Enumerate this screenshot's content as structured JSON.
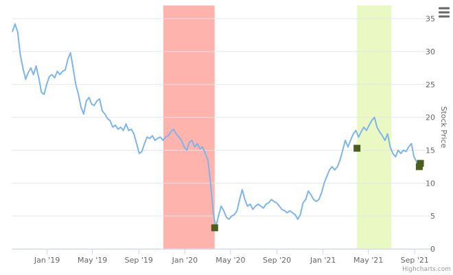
{
  "colors": {
    "line": "#7cb5ec",
    "grid": "#e6e6e6",
    "axis": "#ccd6eb",
    "band_red": "#ffb3ad",
    "band_green": "#eaf9c3",
    "marker": "#4b5e1e",
    "menu_icon": "#666666"
  },
  "icons": {
    "menu": "hamburger-menu-icon"
  },
  "credits": "Highcharts.com",
  "chart_data": {
    "type": "line",
    "title": "",
    "xlabel": "",
    "ylabel": "Stock Price",
    "x_range": [
      "2018-10-01",
      "2021-09-15"
    ],
    "ylim": [
      0,
      37
    ],
    "y_ticks": [
      0,
      5,
      10,
      15,
      20,
      25,
      30,
      35
    ],
    "x_ticks": [
      {
        "date": "2019-01-01",
        "label": "Jan '19"
      },
      {
        "date": "2019-05-01",
        "label": "May '19"
      },
      {
        "date": "2019-09-01",
        "label": "Sep '19"
      },
      {
        "date": "2020-01-01",
        "label": "Jan '20"
      },
      {
        "date": "2020-05-01",
        "label": "May '20"
      },
      {
        "date": "2020-09-01",
        "label": "Sep '20"
      },
      {
        "date": "2021-01-01",
        "label": "Jan '21"
      },
      {
        "date": "2021-05-01",
        "label": "May '21"
      },
      {
        "date": "2021-09-01",
        "label": "Sep '21"
      }
    ],
    "grid": true,
    "legend": "none",
    "bands": [
      {
        "from": "2019-11-05",
        "to": "2020-03-20",
        "color": "red"
      },
      {
        "from": "2021-04-01",
        "to": "2021-07-01",
        "color": "green"
      }
    ],
    "series": [
      {
        "points": [
          [
            "2018-10-01",
            33.0
          ],
          [
            "2018-10-08",
            34.2
          ],
          [
            "2018-10-15",
            33.0
          ],
          [
            "2018-10-22",
            29.5
          ],
          [
            "2018-10-29",
            27.5
          ],
          [
            "2018-11-05",
            25.8
          ],
          [
            "2018-11-12",
            26.8
          ],
          [
            "2018-11-19",
            27.5
          ],
          [
            "2018-11-26",
            26.5
          ],
          [
            "2018-12-03",
            27.8
          ],
          [
            "2018-12-10",
            26.0
          ],
          [
            "2018-12-17",
            23.8
          ],
          [
            "2018-12-24",
            23.5
          ],
          [
            "2018-12-31",
            25.0
          ],
          [
            "2019-01-07",
            26.2
          ],
          [
            "2019-01-14",
            26.5
          ],
          [
            "2019-01-21",
            26.0
          ],
          [
            "2019-01-28",
            27.0
          ],
          [
            "2019-02-04",
            26.5
          ],
          [
            "2019-02-11",
            27.0
          ],
          [
            "2019-02-18",
            27.2
          ],
          [
            "2019-02-25",
            28.8
          ],
          [
            "2019-03-04",
            29.8
          ],
          [
            "2019-03-11",
            27.5
          ],
          [
            "2019-03-18",
            25.0
          ],
          [
            "2019-03-25",
            23.5
          ],
          [
            "2019-04-01",
            21.5
          ],
          [
            "2019-04-08",
            20.5
          ],
          [
            "2019-04-15",
            22.5
          ],
          [
            "2019-04-22",
            23.0
          ],
          [
            "2019-04-29",
            22.0
          ],
          [
            "2019-05-06",
            21.8
          ],
          [
            "2019-05-13",
            22.5
          ],
          [
            "2019-05-20",
            22.8
          ],
          [
            "2019-05-27",
            21.0
          ],
          [
            "2019-06-03",
            20.5
          ],
          [
            "2019-06-10",
            19.8
          ],
          [
            "2019-06-17",
            19.5
          ],
          [
            "2019-06-24",
            18.5
          ],
          [
            "2019-07-01",
            18.8
          ],
          [
            "2019-07-08",
            18.2
          ],
          [
            "2019-07-15",
            18.5
          ],
          [
            "2019-07-22",
            18.0
          ],
          [
            "2019-07-29",
            19.0
          ],
          [
            "2019-08-05",
            18.0
          ],
          [
            "2019-08-12",
            18.2
          ],
          [
            "2019-08-19",
            17.5
          ],
          [
            "2019-08-26",
            16.0
          ],
          [
            "2019-09-02",
            14.5
          ],
          [
            "2019-09-09",
            14.8
          ],
          [
            "2019-09-16",
            16.0
          ],
          [
            "2019-09-23",
            17.0
          ],
          [
            "2019-09-30",
            16.8
          ],
          [
            "2019-10-07",
            17.2
          ],
          [
            "2019-10-14",
            16.5
          ],
          [
            "2019-10-21",
            16.8
          ],
          [
            "2019-10-28",
            17.0
          ],
          [
            "2019-11-04",
            16.5
          ],
          [
            "2019-11-11",
            17.0
          ],
          [
            "2019-11-18",
            17.2
          ],
          [
            "2019-11-25",
            17.8
          ],
          [
            "2019-12-02",
            18.2
          ],
          [
            "2019-12-09",
            17.5
          ],
          [
            "2019-12-16",
            17.0
          ],
          [
            "2019-12-23",
            16.5
          ],
          [
            "2019-12-30",
            15.5
          ],
          [
            "2020-01-06",
            15.0
          ],
          [
            "2020-01-13",
            16.2
          ],
          [
            "2020-01-20",
            16.5
          ],
          [
            "2020-01-27",
            15.5
          ],
          [
            "2020-02-03",
            16.0
          ],
          [
            "2020-02-10",
            15.2
          ],
          [
            "2020-02-17",
            15.5
          ],
          [
            "2020-02-24",
            14.5
          ],
          [
            "2020-03-02",
            13.5
          ],
          [
            "2020-03-09",
            10.0
          ],
          [
            "2020-03-16",
            5.5
          ],
          [
            "2020-03-23",
            3.3
          ],
          [
            "2020-03-30",
            5.0
          ],
          [
            "2020-04-06",
            6.5
          ],
          [
            "2020-04-13",
            5.8
          ],
          [
            "2020-04-20",
            4.8
          ],
          [
            "2020-04-27",
            4.5
          ],
          [
            "2020-05-04",
            5.0
          ],
          [
            "2020-05-11",
            5.2
          ],
          [
            "2020-05-18",
            5.8
          ],
          [
            "2020-05-25",
            7.5
          ],
          [
            "2020-06-01",
            9.0
          ],
          [
            "2020-06-08",
            7.5
          ],
          [
            "2020-06-15",
            6.5
          ],
          [
            "2020-06-22",
            6.8
          ],
          [
            "2020-06-29",
            6.0
          ],
          [
            "2020-07-06",
            6.5
          ],
          [
            "2020-07-13",
            6.8
          ],
          [
            "2020-07-20",
            6.5
          ],
          [
            "2020-07-27",
            6.2
          ],
          [
            "2020-08-03",
            6.8
          ],
          [
            "2020-08-10",
            7.0
          ],
          [
            "2020-08-17",
            7.5
          ],
          [
            "2020-08-24",
            7.2
          ],
          [
            "2020-08-31",
            7.0
          ],
          [
            "2020-09-07",
            6.5
          ],
          [
            "2020-09-14",
            6.0
          ],
          [
            "2020-09-21",
            5.8
          ],
          [
            "2020-09-28",
            5.5
          ],
          [
            "2020-10-05",
            5.8
          ],
          [
            "2020-10-12",
            5.5
          ],
          [
            "2020-10-19",
            5.2
          ],
          [
            "2020-10-26",
            4.5
          ],
          [
            "2020-11-02",
            5.2
          ],
          [
            "2020-11-09",
            7.0
          ],
          [
            "2020-11-16",
            7.5
          ],
          [
            "2020-11-23",
            8.8
          ],
          [
            "2020-11-30",
            8.2
          ],
          [
            "2020-12-07",
            7.5
          ],
          [
            "2020-12-14",
            7.2
          ],
          [
            "2020-12-21",
            7.5
          ],
          [
            "2020-12-28",
            8.5
          ],
          [
            "2021-01-04",
            10.0
          ],
          [
            "2021-01-11",
            11.0
          ],
          [
            "2021-01-18",
            12.0
          ],
          [
            "2021-01-25",
            12.5
          ],
          [
            "2021-02-01",
            12.0
          ],
          [
            "2021-02-08",
            12.5
          ],
          [
            "2021-02-15",
            13.5
          ],
          [
            "2021-02-22",
            15.0
          ],
          [
            "2021-03-01",
            16.5
          ],
          [
            "2021-03-08",
            15.5
          ],
          [
            "2021-03-15",
            16.5
          ],
          [
            "2021-03-22",
            17.5
          ],
          [
            "2021-03-29",
            18.0
          ],
          [
            "2021-04-05",
            17.0
          ],
          [
            "2021-04-12",
            17.8
          ],
          [
            "2021-04-19",
            18.5
          ],
          [
            "2021-04-26",
            18.0
          ],
          [
            "2021-05-03",
            18.8
          ],
          [
            "2021-05-10",
            19.5
          ],
          [
            "2021-05-17",
            20.0
          ],
          [
            "2021-05-24",
            18.5
          ],
          [
            "2021-05-31",
            17.8
          ],
          [
            "2021-06-07",
            17.2
          ],
          [
            "2021-06-14",
            16.5
          ],
          [
            "2021-06-21",
            17.5
          ],
          [
            "2021-06-28",
            15.5
          ],
          [
            "2021-07-05",
            14.5
          ],
          [
            "2021-07-12",
            14.0
          ],
          [
            "2021-07-19",
            15.0
          ],
          [
            "2021-07-26",
            14.5
          ],
          [
            "2021-08-02",
            15.0
          ],
          [
            "2021-08-09",
            14.8
          ],
          [
            "2021-08-16",
            15.5
          ],
          [
            "2021-08-23",
            16.0
          ],
          [
            "2021-08-30",
            14.0
          ],
          [
            "2021-09-06",
            13.2
          ],
          [
            "2021-09-13",
            12.5
          ]
        ]
      }
    ],
    "markers": [
      {
        "date": "2020-03-20",
        "value": 3.2
      },
      {
        "date": "2021-04-01",
        "value": 15.3
      },
      {
        "date": "2021-09-13",
        "value": 12.5
      },
      {
        "date": "2021-09-16",
        "value": 13.0
      }
    ]
  }
}
